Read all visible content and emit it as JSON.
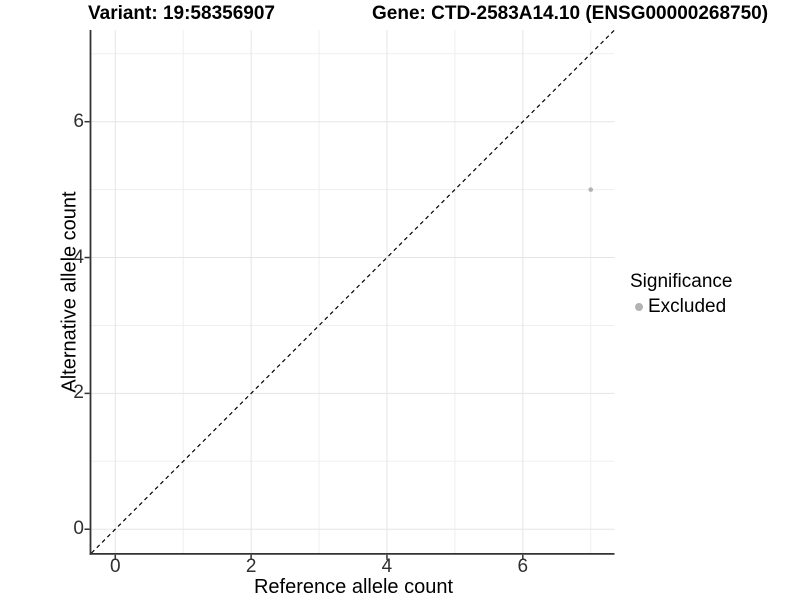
{
  "chart_data": {
    "type": "scatter",
    "title_left": "Variant: 19:58356907",
    "title_right": "Gene: CTD-2583A14.10 (ENSG00000268750)",
    "xlabel": "Reference allele count",
    "ylabel": "Alternative allele count",
    "xlim": [
      -0.35,
      7.35
    ],
    "ylim": [
      -0.35,
      7.35
    ],
    "x_ticks": [
      0,
      2,
      4,
      6
    ],
    "y_ticks": [
      0,
      2,
      4,
      6
    ],
    "x_minor_ticks": [
      1,
      3,
      5,
      7
    ],
    "y_minor_ticks": [
      1,
      3,
      5,
      7
    ],
    "grid": true,
    "legend_position": "right",
    "identity_line": {
      "slope": 1,
      "intercept": 0,
      "style": "dashed",
      "color": "#000000"
    },
    "points": [
      {
        "x": 7,
        "y": 5,
        "significance": "Excluded"
      }
    ],
    "point_radius": 2.3,
    "legend": {
      "title": "Significance",
      "items": [
        {
          "label": "Excluded",
          "color": "#b3b3b3"
        }
      ]
    }
  },
  "colors": {
    "background": "#ffffff",
    "grid_major": "#e5e5e5",
    "grid_minor": "#efefef",
    "axis_line": "#333333",
    "tick_mark": "#333333",
    "tick_label": "#303030",
    "text": "#000000",
    "point": "#b3b3b3"
  }
}
